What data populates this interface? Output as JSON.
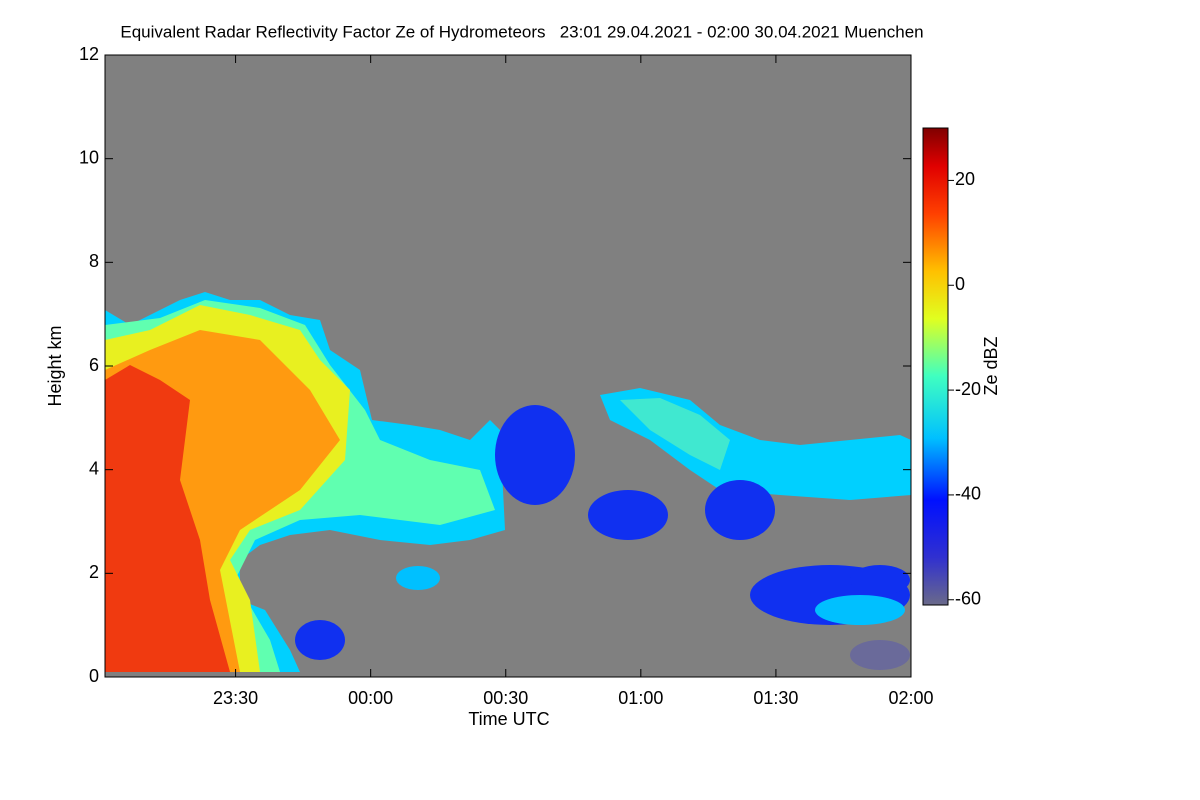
{
  "chart_data": {
    "type": "heatmap",
    "title": "Equivalent Radar Reflectivity Factor Ze of Hydrometeors   23:01 29.04.2021 - 02:00 30.04.2021 Muenchen",
    "xlabel": "Time UTC",
    "ylabel": "Height km",
    "xlim": [
      "2021-04-29T23:01:00Z",
      "2021-04-30T02:00:00Z"
    ],
    "xticks": [
      {
        "value": "2021-04-29T23:30:00Z",
        "label": "23:30"
      },
      {
        "value": "2021-04-30T00:00:00Z",
        "label": "00:00"
      },
      {
        "value": "2021-04-30T00:30:00Z",
        "label": "00:30"
      },
      {
        "value": "2021-04-30T01:00:00Z",
        "label": "01:00"
      },
      {
        "value": "2021-04-30T01:30:00Z",
        "label": "01:30"
      },
      {
        "value": "2021-04-30T02:00:00Z",
        "label": "02:00"
      }
    ],
    "ylim": [
      0,
      12
    ],
    "yticks": [
      0,
      2,
      4,
      6,
      8,
      10,
      12
    ],
    "background": "#808080",
    "colorbar": {
      "label": "Ze dBZ",
      "lim": [
        -61,
        30
      ],
      "ticks": [
        -60,
        -40,
        -20,
        0,
        20
      ]
    }
  }
}
